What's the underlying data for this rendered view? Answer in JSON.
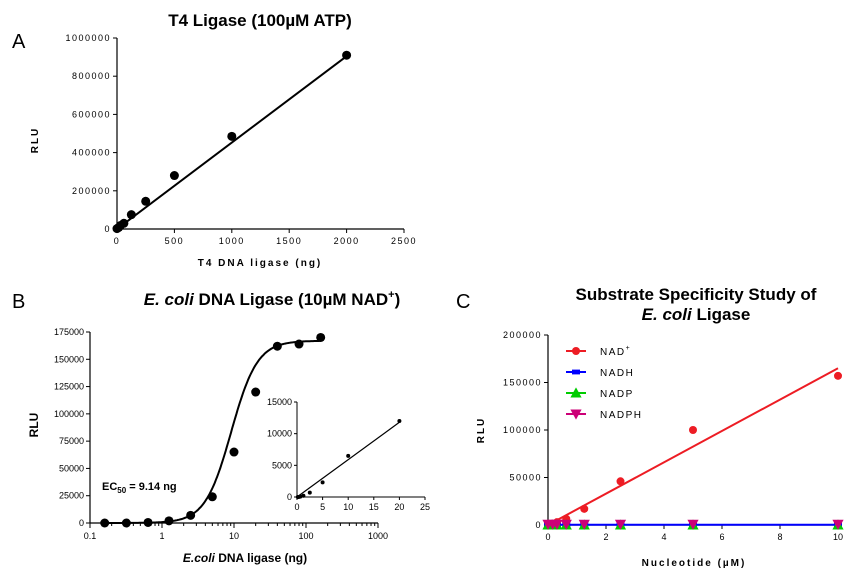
{
  "chart_data": [
    {
      "panel": "A",
      "type": "scatter",
      "title": "T4 Ligase (100µM ATP)",
      "xlabel": "T4 DNA ligase (ng)",
      "ylabel": "RLU",
      "xlim": [
        0,
        2500
      ],
      "ylim": [
        0,
        1000000
      ],
      "xticks": [
        "0",
        "500",
        "1000",
        "1500",
        "2000",
        "2500"
      ],
      "yticks": [
        "0",
        "200000",
        "400000",
        "600000",
        "800000",
        "1000000"
      ],
      "points": {
        "x": [
          0,
          15,
          30,
          60,
          125,
          250,
          500,
          1000,
          2000
        ],
        "y": [
          2000,
          8000,
          18000,
          30000,
          75000,
          145000,
          280000,
          485000,
          910000
        ]
      },
      "fit": {
        "x": [
          0,
          2000
        ],
        "y": [
          0,
          905000
        ]
      },
      "color": "#000000"
    },
    {
      "panel": "B",
      "type": "scatter",
      "title_italic": "E. coli",
      "title_rest": " DNA Ligase (10µM NAD",
      "title_sup": "+",
      "title_end": ")",
      "xlabel_italic": "E.coli",
      "xlabel_rest": " DNA ligase (ng)",
      "ylabel": "RLU",
      "xscale": "log",
      "xlim": [
        0.1,
        1000
      ],
      "ylim": [
        0,
        175000
      ],
      "xticks": [
        "0.1",
        "1",
        "10",
        "100",
        "1000"
      ],
      "yticks": [
        "0",
        "25000",
        "50000",
        "75000",
        "100000",
        "125000",
        "150000",
        "175000"
      ],
      "points": {
        "x": [
          0.16,
          0.32,
          0.64,
          1.25,
          2.5,
          5,
          10,
          20,
          40,
          80,
          160
        ],
        "y": [
          0,
          0,
          500,
          2000,
          7000,
          24000,
          65000,
          120000,
          162000,
          164000,
          170000
        ]
      },
      "ec50_label": "EC",
      "ec50_sub": "50",
      "ec50_value": " = 9.14 ng",
      "ec50": 9.14,
      "hill": 2.4,
      "top": 167000,
      "inset": {
        "type": "scatter",
        "xlim": [
          0,
          25
        ],
        "ylim": [
          0,
          15000
        ],
        "xticks": [
          "0",
          "5",
          "10",
          "15",
          "20",
          "25"
        ],
        "yticks": [
          "0",
          "5000",
          "10000",
          "15000"
        ],
        "points": {
          "x": [
            0.16,
            0.32,
            0.64,
            1.25,
            2.5,
            5,
            10,
            20
          ],
          "y": [
            0,
            0,
            50,
            200,
            700,
            2300,
            6500,
            12000
          ]
        },
        "fit": {
          "x": [
            0,
            20
          ],
          "y": [
            0,
            11800
          ]
        }
      },
      "color": "#000000"
    },
    {
      "panel": "C",
      "type": "scatter",
      "title_line1": "Substrate Specificity Study of",
      "title_line2_italic": "E. coli",
      "title_line2_rest": " Ligase",
      "xlabel": "Nucleotide (µM)",
      "ylabel": "RLU",
      "xlim": [
        0,
        10
      ],
      "ylim": [
        0,
        200000
      ],
      "xticks": [
        "0",
        "2",
        "4",
        "6",
        "8",
        "10"
      ],
      "yticks": [
        "0",
        "50000",
        "100000",
        "150000",
        "200000"
      ],
      "legend_position": "top-left",
      "series": [
        {
          "name": "NAD",
          "name_sup": "+",
          "marker": "circle",
          "color": "#ed1c24",
          "x": [
            0,
            0.16,
            0.31,
            0.63,
            1.25,
            2.5,
            5,
            10
          ],
          "y": [
            500,
            1500,
            3000,
            6500,
            17000,
            46000,
            100000,
            157000
          ],
          "fit": {
            "x": [
              0,
              10
            ],
            "y": [
              0,
              165000
            ]
          }
        },
        {
          "name": "NADH",
          "marker": "square",
          "color": "#0000ff",
          "x": [
            0,
            0.16,
            0.31,
            0.63,
            1.25,
            2.5,
            5,
            10
          ],
          "y": [
            300,
            300,
            300,
            300,
            300,
            300,
            300,
            300
          ],
          "fit": {
            "x": [
              0,
              10
            ],
            "y": [
              300,
              300
            ]
          }
        },
        {
          "name": "NADP",
          "marker": "triangle-up",
          "color": "#00cc00",
          "x": [
            0,
            0.16,
            0.31,
            0.63,
            1.25,
            2.5,
            5,
            10
          ],
          "y": [
            0,
            0,
            0,
            0,
            0,
            0,
            0,
            0
          ]
        },
        {
          "name": "NADPH",
          "marker": "triangle-down",
          "color": "#cc0077",
          "x": [
            0,
            0.16,
            0.31,
            0.63,
            1.25,
            2.5,
            5,
            10
          ],
          "y": [
            800,
            800,
            800,
            800,
            800,
            800,
            800,
            800
          ]
        }
      ]
    }
  ]
}
